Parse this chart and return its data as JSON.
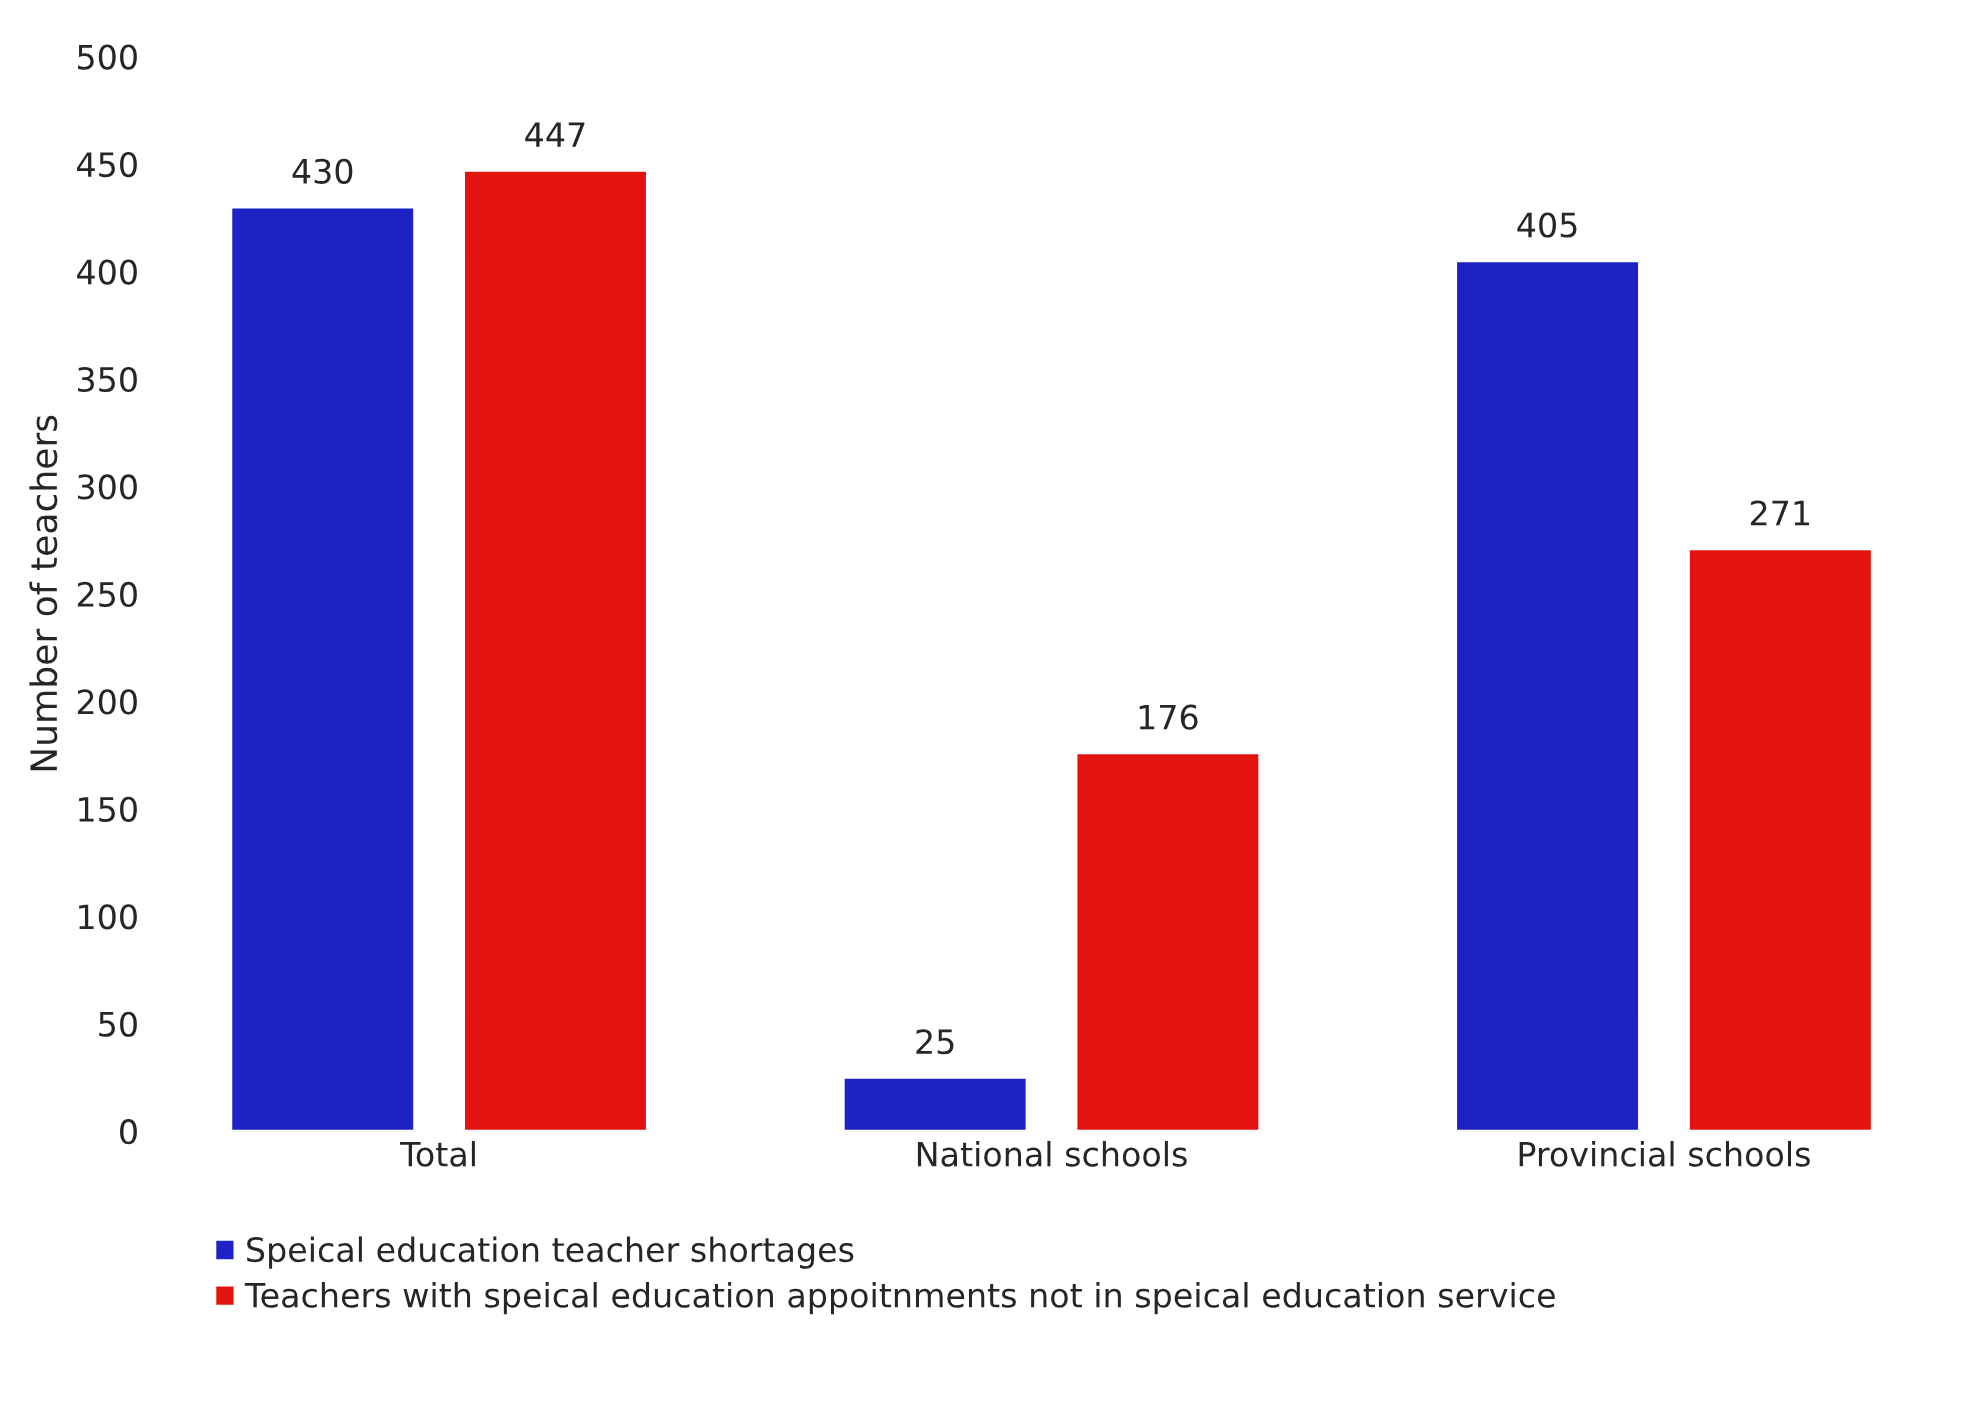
{
  "chart_data": {
    "type": "bar",
    "ylabel": "Number of teachers",
    "categories": [
      "Total",
      "National schools",
      "Provincial schools"
    ],
    "series": [
      {
        "name": "Speical education teacher shortages",
        "color": "#1c22c4",
        "values": [
          430,
          25,
          405
        ]
      },
      {
        "name": "Teachers with speical education appoitnments not in speical education service",
        "color": "#e3140f",
        "values": [
          447,
          176,
          271
        ]
      }
    ],
    "ylim": [
      0,
      500
    ],
    "yticks": [
      0,
      50,
      100,
      150,
      200,
      250,
      300,
      350,
      400,
      450,
      500
    ],
    "data_labels": true,
    "grid": false,
    "legend": "bottom"
  }
}
